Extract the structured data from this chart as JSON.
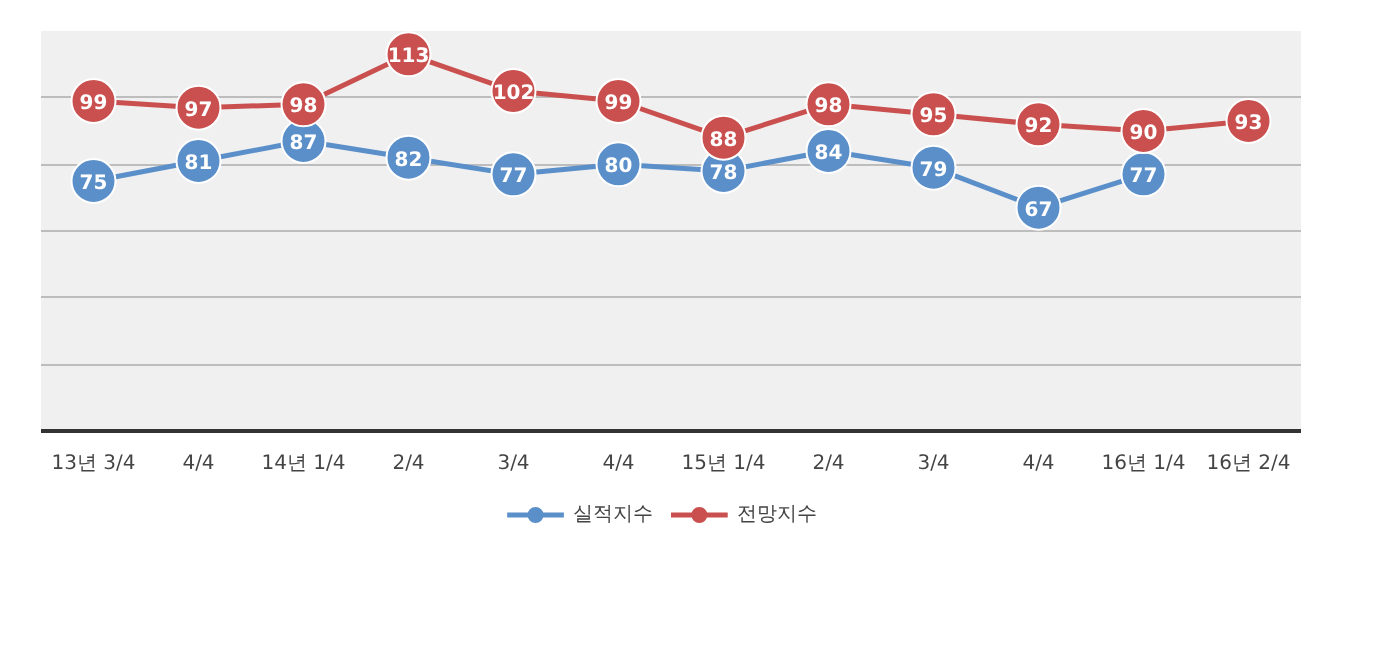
{
  "chart_data": {
    "type": "line",
    "categories": [
      "13년 3/4",
      "4/4",
      "14년 1/4",
      "2/4",
      "3/4",
      "4/4",
      "15년 1/4",
      "2/4",
      "3/4",
      "4/4",
      "16년 1/4",
      "16년 2/4"
    ],
    "series": [
      {
        "name": "실적지수",
        "color": "#5b8fc9",
        "values": [
          75,
          81,
          87,
          82,
          77,
          80,
          78,
          84,
          79,
          67,
          77,
          null
        ]
      },
      {
        "name": "전망지수",
        "color": "#c9504f",
        "values": [
          99,
          97,
          98,
          113,
          102,
          99,
          88,
          98,
          95,
          92,
          90,
          93
        ]
      }
    ],
    "ylim": [
      0,
      120
    ],
    "yticks": [
      {
        "value": 0,
        "label": null
      },
      {
        "value": 20,
        "label": null
      },
      {
        "value": 40,
        "label": null
      },
      {
        "value": 60,
        "label": null
      },
      {
        "value": 80,
        "label": null
      },
      {
        "value": 100,
        "label": null
      },
      {
        "value": 120,
        "label": null
      }
    ],
    "tick_labels": "x",
    "grid": "y",
    "legend": "bottom",
    "marker": "circle",
    "line_style": "solid",
    "data_labels": true
  }
}
